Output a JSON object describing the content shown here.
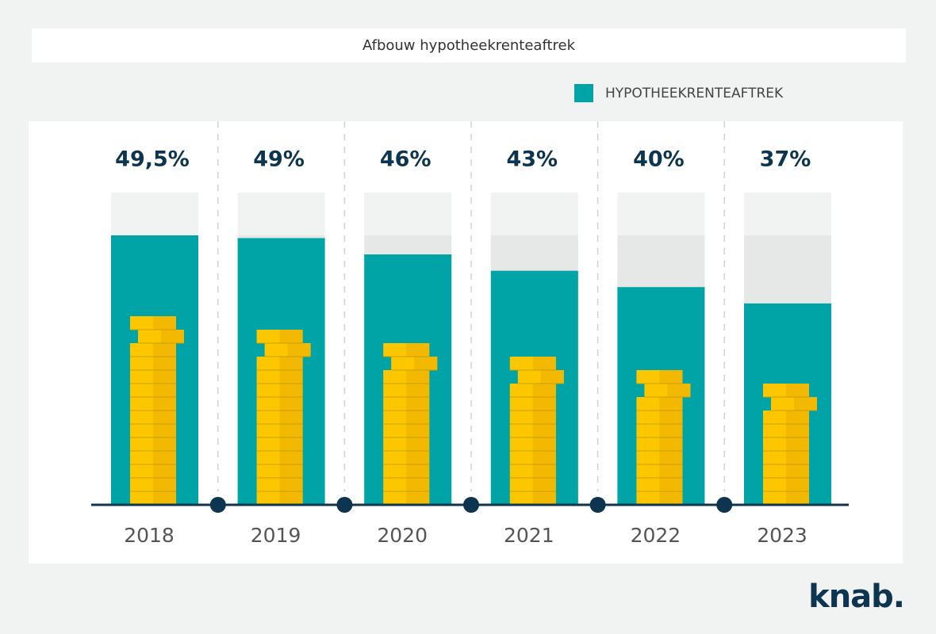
{
  "chart_data": {
    "type": "bar",
    "title": "Afbouw hypotheekrenteaftrek",
    "categories": [
      "2018",
      "2019",
      "2020",
      "2021",
      "2022",
      "2023"
    ],
    "series": [
      {
        "name": "HYPOTHEEKRENTEAFTREK",
        "color": "#00a3a6",
        "values": [
          49.5,
          49,
          46,
          43,
          40,
          37
        ],
        "value_labels": [
          "49,5%",
          "49%",
          "46%",
          "43%",
          "40%",
          "37%"
        ]
      }
    ],
    "legend": "top-right"
  },
  "logo": "knab."
}
